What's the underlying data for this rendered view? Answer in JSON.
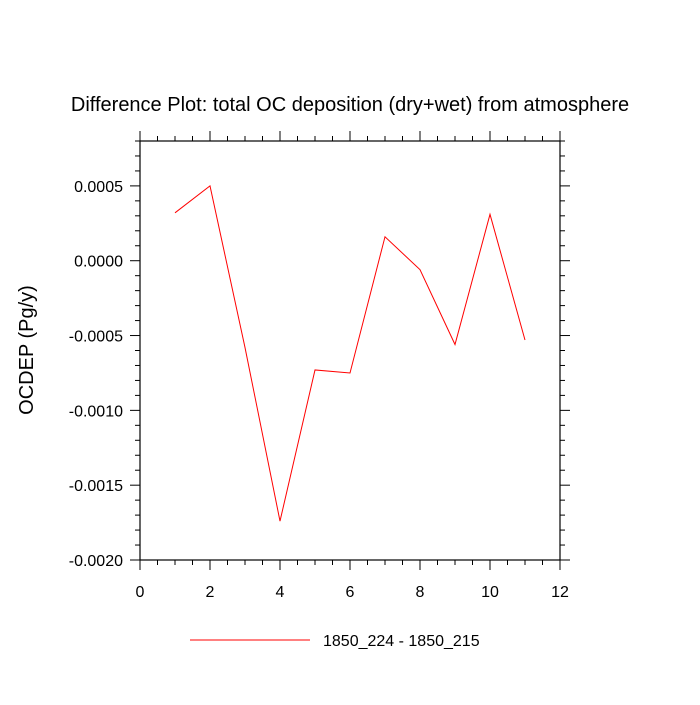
{
  "chart_data": {
    "type": "line",
    "title": "Difference Plot: total OC deposition (dry+wet) from atmosphere",
    "xlabel": "",
    "ylabel": "OCDEP  (Pg/y)",
    "xlim": [
      0,
      12
    ],
    "ylim": [
      -0.002,
      0.0008
    ],
    "x_ticks": [
      0,
      2,
      4,
      6,
      8,
      10,
      12
    ],
    "x_tick_labels": [
      "0",
      "2",
      "4",
      "6",
      "8",
      "10",
      "12"
    ],
    "y_ticks": [
      -0.002,
      -0.0015,
      -0.001,
      -0.0005,
      0.0,
      0.0005
    ],
    "y_tick_labels": [
      "-0.0020",
      "-0.0015",
      "-0.0010",
      "-0.0005",
      "0.0000",
      "0.0005"
    ],
    "grid": false,
    "legend": "bottom-center",
    "series": [
      {
        "name": "1850_224 - 1850_215",
        "color": "#ff0000",
        "x": [
          1,
          2,
          3,
          4,
          5,
          6,
          7,
          8,
          9,
          10,
          11
        ],
        "values": [
          0.00032,
          0.0005,
          -0.00058,
          -0.00174,
          -0.00073,
          -0.00075,
          0.00016,
          -6e-05,
          -0.00056,
          0.00031,
          -0.00053
        ]
      }
    ]
  }
}
